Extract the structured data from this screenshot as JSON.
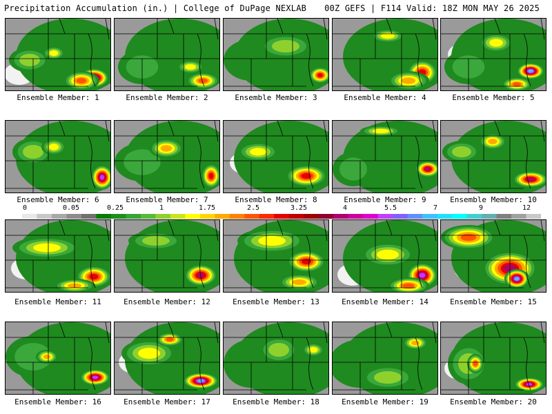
{
  "header": {
    "title_left": "Precipitation Accumulation (in.) | College of DuPage NEXLAB",
    "title_right": "00Z GEFS | F114 Valid: 18Z MON MAY 26 2025"
  },
  "colorbar": {
    "tick_labels": [
      "0",
      "0.05",
      "0.25",
      "1",
      "1.75",
      "2.5",
      "3.25",
      "4",
      "5.5",
      "7",
      "9",
      "12"
    ],
    "colors": [
      "#e8e8e8",
      "#c8c8c8",
      "#a8a8a8",
      "#8c8c8c",
      "#707070",
      "#0a7a0a",
      "#1c8f1c",
      "#36a436",
      "#58bb36",
      "#8fd12c",
      "#c8e61c",
      "#ffff00",
      "#ffd500",
      "#ffaa00",
      "#ff7f00",
      "#ff5500",
      "#ff2a00",
      "#e60000",
      "#c00000",
      "#a00000",
      "#900030",
      "#b00070",
      "#d000a0",
      "#e000d0",
      "#c040ff",
      "#8060ff",
      "#6090ff",
      "#40c0ff",
      "#20e0ff",
      "#00ffff",
      "#40d0d0",
      "#60b0b0",
      "#808080",
      "#a0a0a0",
      "#c8c8c8"
    ]
  },
  "members": [
    {
      "label": "Ensemble Member: 1"
    },
    {
      "label": "Ensemble Member: 2"
    },
    {
      "label": "Ensemble Member: 3"
    },
    {
      "label": "Ensemble Member: 4"
    },
    {
      "label": "Ensemble Member: 5"
    },
    {
      "label": "Ensemble Member: 6"
    },
    {
      "label": "Ensemble Member: 7"
    },
    {
      "label": "Ensemble Member: 8"
    },
    {
      "label": "Ensemble Member: 9"
    },
    {
      "label": "Ensemble Member: 10"
    },
    {
      "label": "Ensemble Member: 11"
    },
    {
      "label": "Ensemble Member: 12"
    },
    {
      "label": "Ensemble Member: 13"
    },
    {
      "label": "Ensemble Member: 14"
    },
    {
      "label": "Ensemble Member: 15"
    },
    {
      "label": "Ensemble Member: 16"
    },
    {
      "label": "Ensemble Member: 17"
    },
    {
      "label": "Ensemble Member: 18"
    },
    {
      "label": "Ensemble Member: 19"
    },
    {
      "label": "Ensemble Member: 20"
    }
  ]
}
